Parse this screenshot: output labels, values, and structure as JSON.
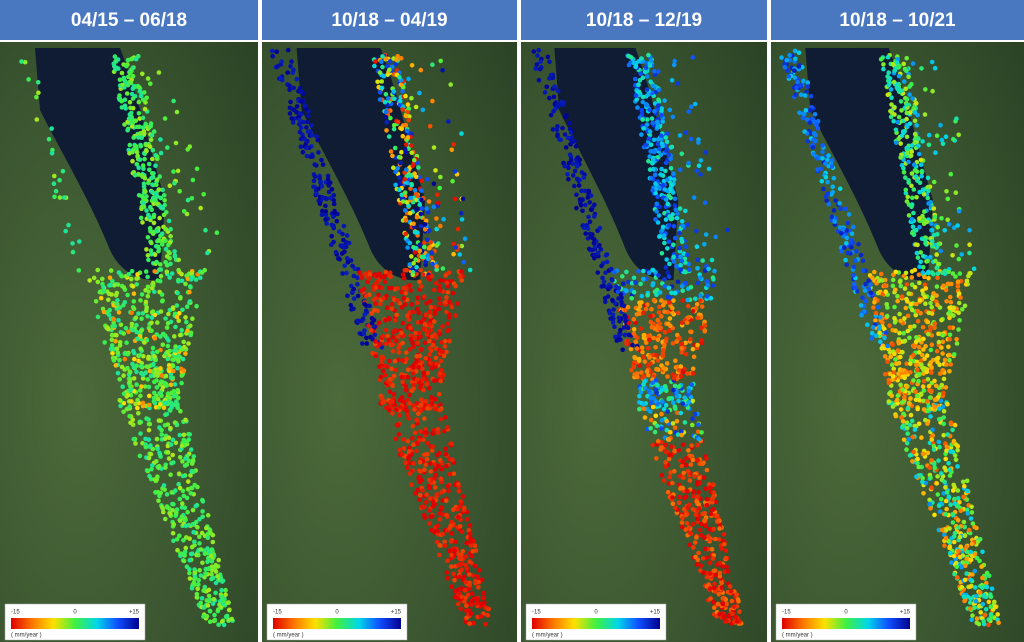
{
  "panels": [
    {
      "title": "04/15 – 06/18",
      "colorbar": {
        "min": "-15",
        "mid": "0",
        "max": "+15",
        "unit": "( mm/year )"
      }
    },
    {
      "title": "10/18 – 04/19",
      "colorbar": {
        "min": "-15",
        "mid": "0",
        "max": "+15",
        "unit": "( mm/year )"
      }
    },
    {
      "title": "10/18 – 12/19",
      "colorbar": {
        "min": "-15",
        "mid": "0",
        "max": "+15",
        "unit": "( mm/year )"
      }
    },
    {
      "title": "10/18 – 10/21",
      "colorbar": {
        "min": "-15",
        "mid": "0",
        "max": "+15",
        "unit": "( mm/year )"
      }
    }
  ]
}
